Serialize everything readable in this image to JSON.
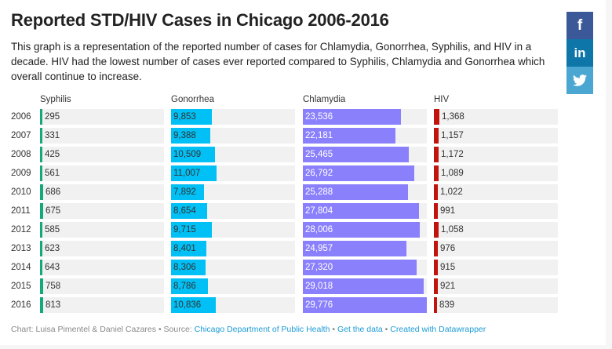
{
  "header": {
    "title": "Reported STD/HIV Cases in Chicago 2006-2016",
    "description": "This graph is a representation of the reported number of cases for Chlamydia, Gonorrhea, Syphilis, and HIV in a decade. HIV had the lowest number of cases ever reported compared to Syphilis, Chlamydia and Gonorrhea which overall continue to increase."
  },
  "social": [
    {
      "name": "facebook",
      "glyph": "f",
      "color": "#3b5998"
    },
    {
      "name": "linkedin",
      "glyph": "in",
      "color": "#0e76a8"
    },
    {
      "name": "twitter",
      "glyph": "♥",
      "color": "#4ba7d2"
    }
  ],
  "chart_data": {
    "type": "bar",
    "title": "Reported STD/HIV Cases in Chicago 2006-2016",
    "categories": [
      "2006",
      "2007",
      "2008",
      "2009",
      "2010",
      "2011",
      "2012",
      "2013",
      "2014",
      "2015",
      "2016"
    ],
    "series": [
      {
        "name": "Syphilis",
        "color": "#15a87a",
        "labels_inside": false,
        "max": 29776,
        "values": [
          295,
          331,
          425,
          561,
          686,
          675,
          585,
          623,
          643,
          758,
          813
        ],
        "labels": [
          "295",
          "331",
          "425",
          "561",
          "686",
          "675",
          "585",
          "623",
          "643",
          "758",
          "813"
        ]
      },
      {
        "name": "Gonorrhea",
        "color": "#00c0f5",
        "labels_inside": true,
        "text_color": "#333333",
        "max": 29776,
        "values": [
          9853,
          9388,
          10509,
          11007,
          7892,
          8654,
          9715,
          8401,
          8306,
          8786,
          10836
        ],
        "labels": [
          "9,853",
          "9,388",
          "10,509",
          "11,007",
          "7,892",
          "8,654",
          "9,715",
          "8,401",
          "8,306",
          "8,786",
          "10,836"
        ]
      },
      {
        "name": "Chlamydia",
        "color": "#8b80fb",
        "labels_inside": true,
        "text_color": "#ffffff",
        "max": 29776,
        "values": [
          23536,
          22181,
          25465,
          26792,
          25288,
          27804,
          28006,
          24957,
          27320,
          29018,
          29776
        ],
        "labels": [
          "23,536",
          "22,181",
          "25,465",
          "26,792",
          "25,288",
          "27,804",
          "28,006",
          "24,957",
          "27,320",
          "29,018",
          "29,776"
        ]
      },
      {
        "name": "HIV",
        "color": "#c0140c",
        "labels_inside": false,
        "max": 29776,
        "values": [
          1368,
          1157,
          1172,
          1089,
          1022,
          991,
          1058,
          976,
          915,
          921,
          839
        ],
        "labels": [
          "1,368",
          "1,157",
          "1,172",
          "1,089",
          "1,022",
          "991",
          "1,058",
          "976",
          "915",
          "921",
          "839"
        ]
      }
    ],
    "xlabel": "",
    "ylabel": ""
  },
  "footer": {
    "chart_by": "Chart: Luisa Pimentel & Daniel Cazares",
    "source_prefix": "Source:",
    "source_link": "Chicago Department of Public Health",
    "get_data": "Get the data",
    "created_with": "Created with Datawrapper",
    "separator": "•"
  }
}
